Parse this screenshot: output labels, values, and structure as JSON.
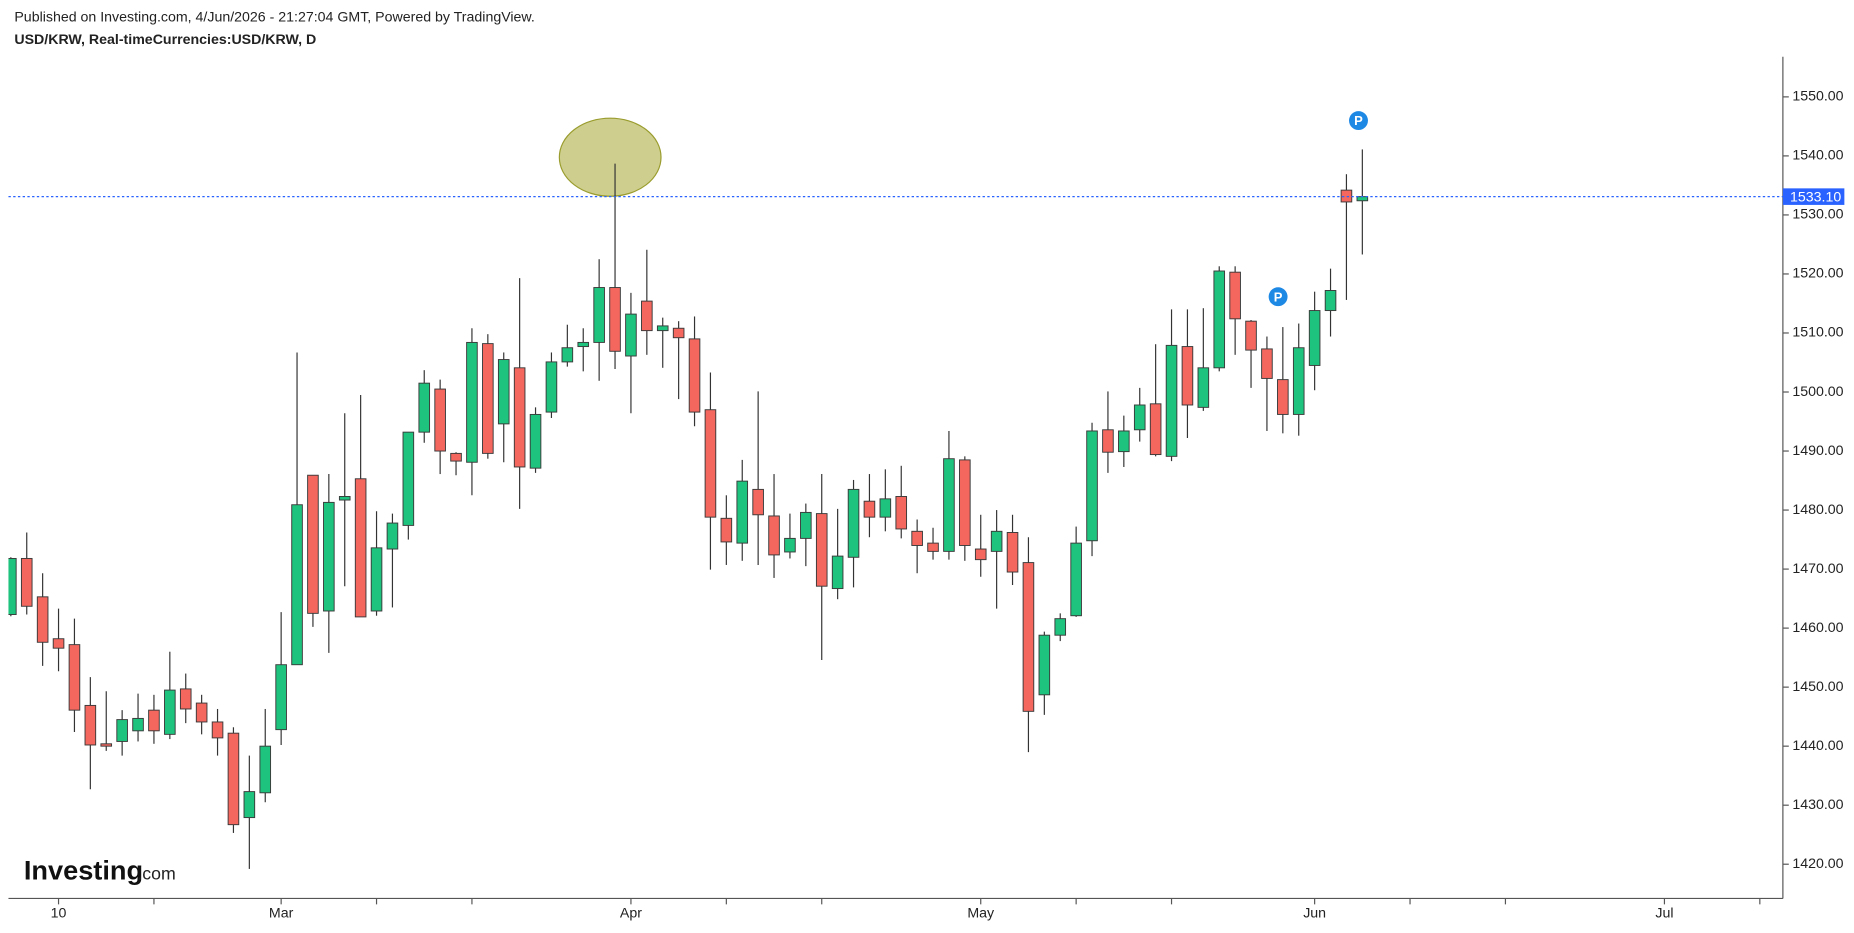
{
  "header": {
    "published": "Published on Investing.com, 4/Jun/2026 - 21:27:04 GMT, Powered by TradingView.",
    "symbol": "USD/KRW, Real-timeCurrencies:USD/KRW, D"
  },
  "chart_data": {
    "type": "candlestick",
    "open": [
      1462.3,
      1471.8,
      1465.3,
      1458.2,
      1457.2,
      1446.9,
      1440.4,
      1440.8,
      1442.6,
      1446.1,
      1442.0,
      1449.7,
      1447.3,
      1444.1,
      1442.2,
      1427.9,
      1432.1,
      1442.8,
      1453.8,
      1485.9,
      1462.9,
      1481.7,
      1485.3,
      1462.9,
      1473.4,
      1477.4,
      1493.2,
      1500.5,
      1489.6,
      1488.1,
      1508.2,
      1494.6,
      1504.1,
      1487.1,
      1496.6,
      1505.1,
      1507.7,
      1508.4,
      1517.7,
      1506.1,
      1515.4,
      1510.4,
      1510.8,
      1509.0,
      1497.0,
      1478.6,
      1474.4,
      1483.5,
      1479.0,
      1472.9,
      1475.2,
      1479.4,
      1466.7,
      1472.0,
      1481.5,
      1478.8,
      1482.3,
      1476.4,
      1474.4,
      1473.0,
      1488.5,
      1473.4,
      1473.0,
      1476.2,
      1471.1,
      1448.7,
      1458.8,
      1462.1,
      1474.8,
      1493.6,
      1489.9,
      1493.6,
      1498.0,
      1489.1,
      1507.7,
      1497.4,
      1504.1,
      1520.3,
      1512.0,
      1507.3,
      1502.1,
      1496.2,
      1504.5,
      1513.8,
      1534.2,
      1532.4
    ],
    "high": [
      1472.0,
      1476.2,
      1469.3,
      1463.3,
      1461.6,
      1451.7,
      1449.3,
      1446.1,
      1448.9,
      1448.7,
      1456.0,
      1452.3,
      1448.7,
      1446.3,
      1443.2,
      1438.4,
      1446.3,
      1462.7,
      1506.7,
      1485.9,
      1486.1,
      1496.4,
      1499.5,
      1479.8,
      1479.4,
      1493.2,
      1503.7,
      1502.1,
      1489.8,
      1510.8,
      1509.8,
      1506.7,
      1519.3,
      1497.4,
      1506.7,
      1511.4,
      1510.8,
      1522.5,
      1538.7,
      1516.8,
      1524.1,
      1512.6,
      1512.0,
      1512.8,
      1503.3,
      1482.5,
      1488.5,
      1500.1,
      1486.1,
      1479.4,
      1481.1,
      1486.1,
      1480.2,
      1485.1,
      1486.1,
      1486.9,
      1487.5,
      1478.4,
      1477.0,
      1493.4,
      1489.1,
      1479.2,
      1480.0,
      1479.2,
      1475.4,
      1459.4,
      1462.5,
      1477.2,
      1494.8,
      1500.1,
      1496.0,
      1500.7,
      1508.1,
      1514.0,
      1514.0,
      1514.2,
      1521.3,
      1521.3,
      1512.2,
      1509.4,
      1511.0,
      1511.6,
      1517.0,
      1520.9,
      1536.9,
      1541.1
    ],
    "low": [
      1462.0,
      1462.3,
      1453.6,
      1452.7,
      1442.4,
      1432.7,
      1439.2,
      1438.4,
      1440.8,
      1440.4,
      1441.2,
      1443.9,
      1442.0,
      1438.4,
      1425.3,
      1419.2,
      1430.5,
      1440.2,
      1453.8,
      1460.2,
      1455.8,
      1467.1,
      1461.9,
      1462.1,
      1463.5,
      1475.0,
      1491.4,
      1486.1,
      1485.9,
      1482.5,
      1488.7,
      1488.1,
      1480.2,
      1486.3,
      1495.6,
      1504.3,
      1503.5,
      1501.9,
      1503.9,
      1496.4,
      1506.3,
      1504.1,
      1498.8,
      1494.2,
      1469.9,
      1470.7,
      1471.4,
      1470.7,
      1468.5,
      1471.8,
      1470.5,
      1454.6,
      1464.9,
      1466.9,
      1475.4,
      1476.4,
      1475.2,
      1469.3,
      1471.6,
      1471.6,
      1471.4,
      1468.7,
      1463.3,
      1467.3,
      1439.0,
      1445.3,
      1457.8,
      1461.9,
      1472.2,
      1486.3,
      1487.3,
      1491.6,
      1489.1,
      1488.3,
      1492.2,
      1496.8,
      1503.5,
      1506.3,
      1500.7,
      1493.4,
      1493.0,
      1492.6,
      1500.3,
      1509.4,
      1515.6,
      1523.3
    ],
    "close": [
      1471.8,
      1463.7,
      1457.6,
      1456.6,
      1446.1,
      1440.2,
      1440.0,
      1444.5,
      1444.7,
      1442.6,
      1449.5,
      1446.3,
      1444.1,
      1441.4,
      1426.7,
      1432.3,
      1440.0,
      1453.8,
      1480.9,
      1462.5,
      1481.3,
      1482.3,
      1461.9,
      1473.6,
      1477.8,
      1493.2,
      1501.5,
      1490.0,
      1488.3,
      1508.4,
      1489.6,
      1505.5,
      1487.3,
      1496.2,
      1505.1,
      1507.5,
      1508.4,
      1517.7,
      1506.9,
      1513.2,
      1510.4,
      1511.2,
      1509.2,
      1496.6,
      1478.8,
      1474.6,
      1484.9,
      1479.2,
      1472.4,
      1475.2,
      1479.6,
      1467.1,
      1472.2,
      1483.5,
      1478.8,
      1481.9,
      1476.8,
      1474.0,
      1473.0,
      1488.7,
      1474.0,
      1471.6,
      1476.4,
      1469.5,
      1445.9,
      1458.8,
      1461.6,
      1474.4,
      1493.4,
      1489.8,
      1493.4,
      1497.8,
      1489.4,
      1507.9,
      1497.8,
      1504.1,
      1520.5,
      1512.4,
      1507.1,
      1502.3,
      1496.2,
      1507.5,
      1513.8,
      1517.2,
      1532.2,
      1533.1
    ],
    "up_color": "#1ec47e",
    "down_color": "#f3675f",
    "wick_color": "#333333",
    "ylim": [
      1414.2,
      1556.8
    ],
    "yticks": [
      {
        "value": 1420,
        "label": "1420.00"
      },
      {
        "value": 1430,
        "label": "1430.00"
      },
      {
        "value": 1440,
        "label": "1440.00"
      },
      {
        "value": 1450,
        "label": "1450.00"
      },
      {
        "value": 1460,
        "label": "1460.00"
      },
      {
        "value": 1470,
        "label": "1470.00"
      },
      {
        "value": 1480,
        "label": "1480.00"
      },
      {
        "value": 1490,
        "label": "1490.00"
      },
      {
        "value": 1500,
        "label": "1500.00"
      },
      {
        "value": 1510,
        "label": "1510.00"
      },
      {
        "value": 1520,
        "label": "1520.00"
      },
      {
        "value": 1530,
        "label": "1530.00"
      },
      {
        "value": 1540,
        "label": "1540.00"
      },
      {
        "value": 1550,
        "label": "1550.00"
      }
    ],
    "xlim": [
      -0.15,
      111.45
    ],
    "xticks": [
      {
        "value": 3,
        "label": "10"
      },
      {
        "value": 17,
        "label": "Mar"
      },
      {
        "value": 39,
        "label": "Apr"
      },
      {
        "value": 61,
        "label": "May"
      },
      {
        "value": 82,
        "label": "Jun"
      },
      {
        "value": 104,
        "label": "Jul"
      }
    ],
    "xminorticks": [
      9,
      23,
      29,
      45,
      51,
      67,
      73,
      88,
      94,
      110
    ],
    "last_price": {
      "value": 1533.1,
      "label": "1533.10",
      "color": "#2962ff"
    },
    "markers": [
      "P",
      "P"
    ],
    "logo": [
      "Investing",
      ".com"
    ]
  }
}
